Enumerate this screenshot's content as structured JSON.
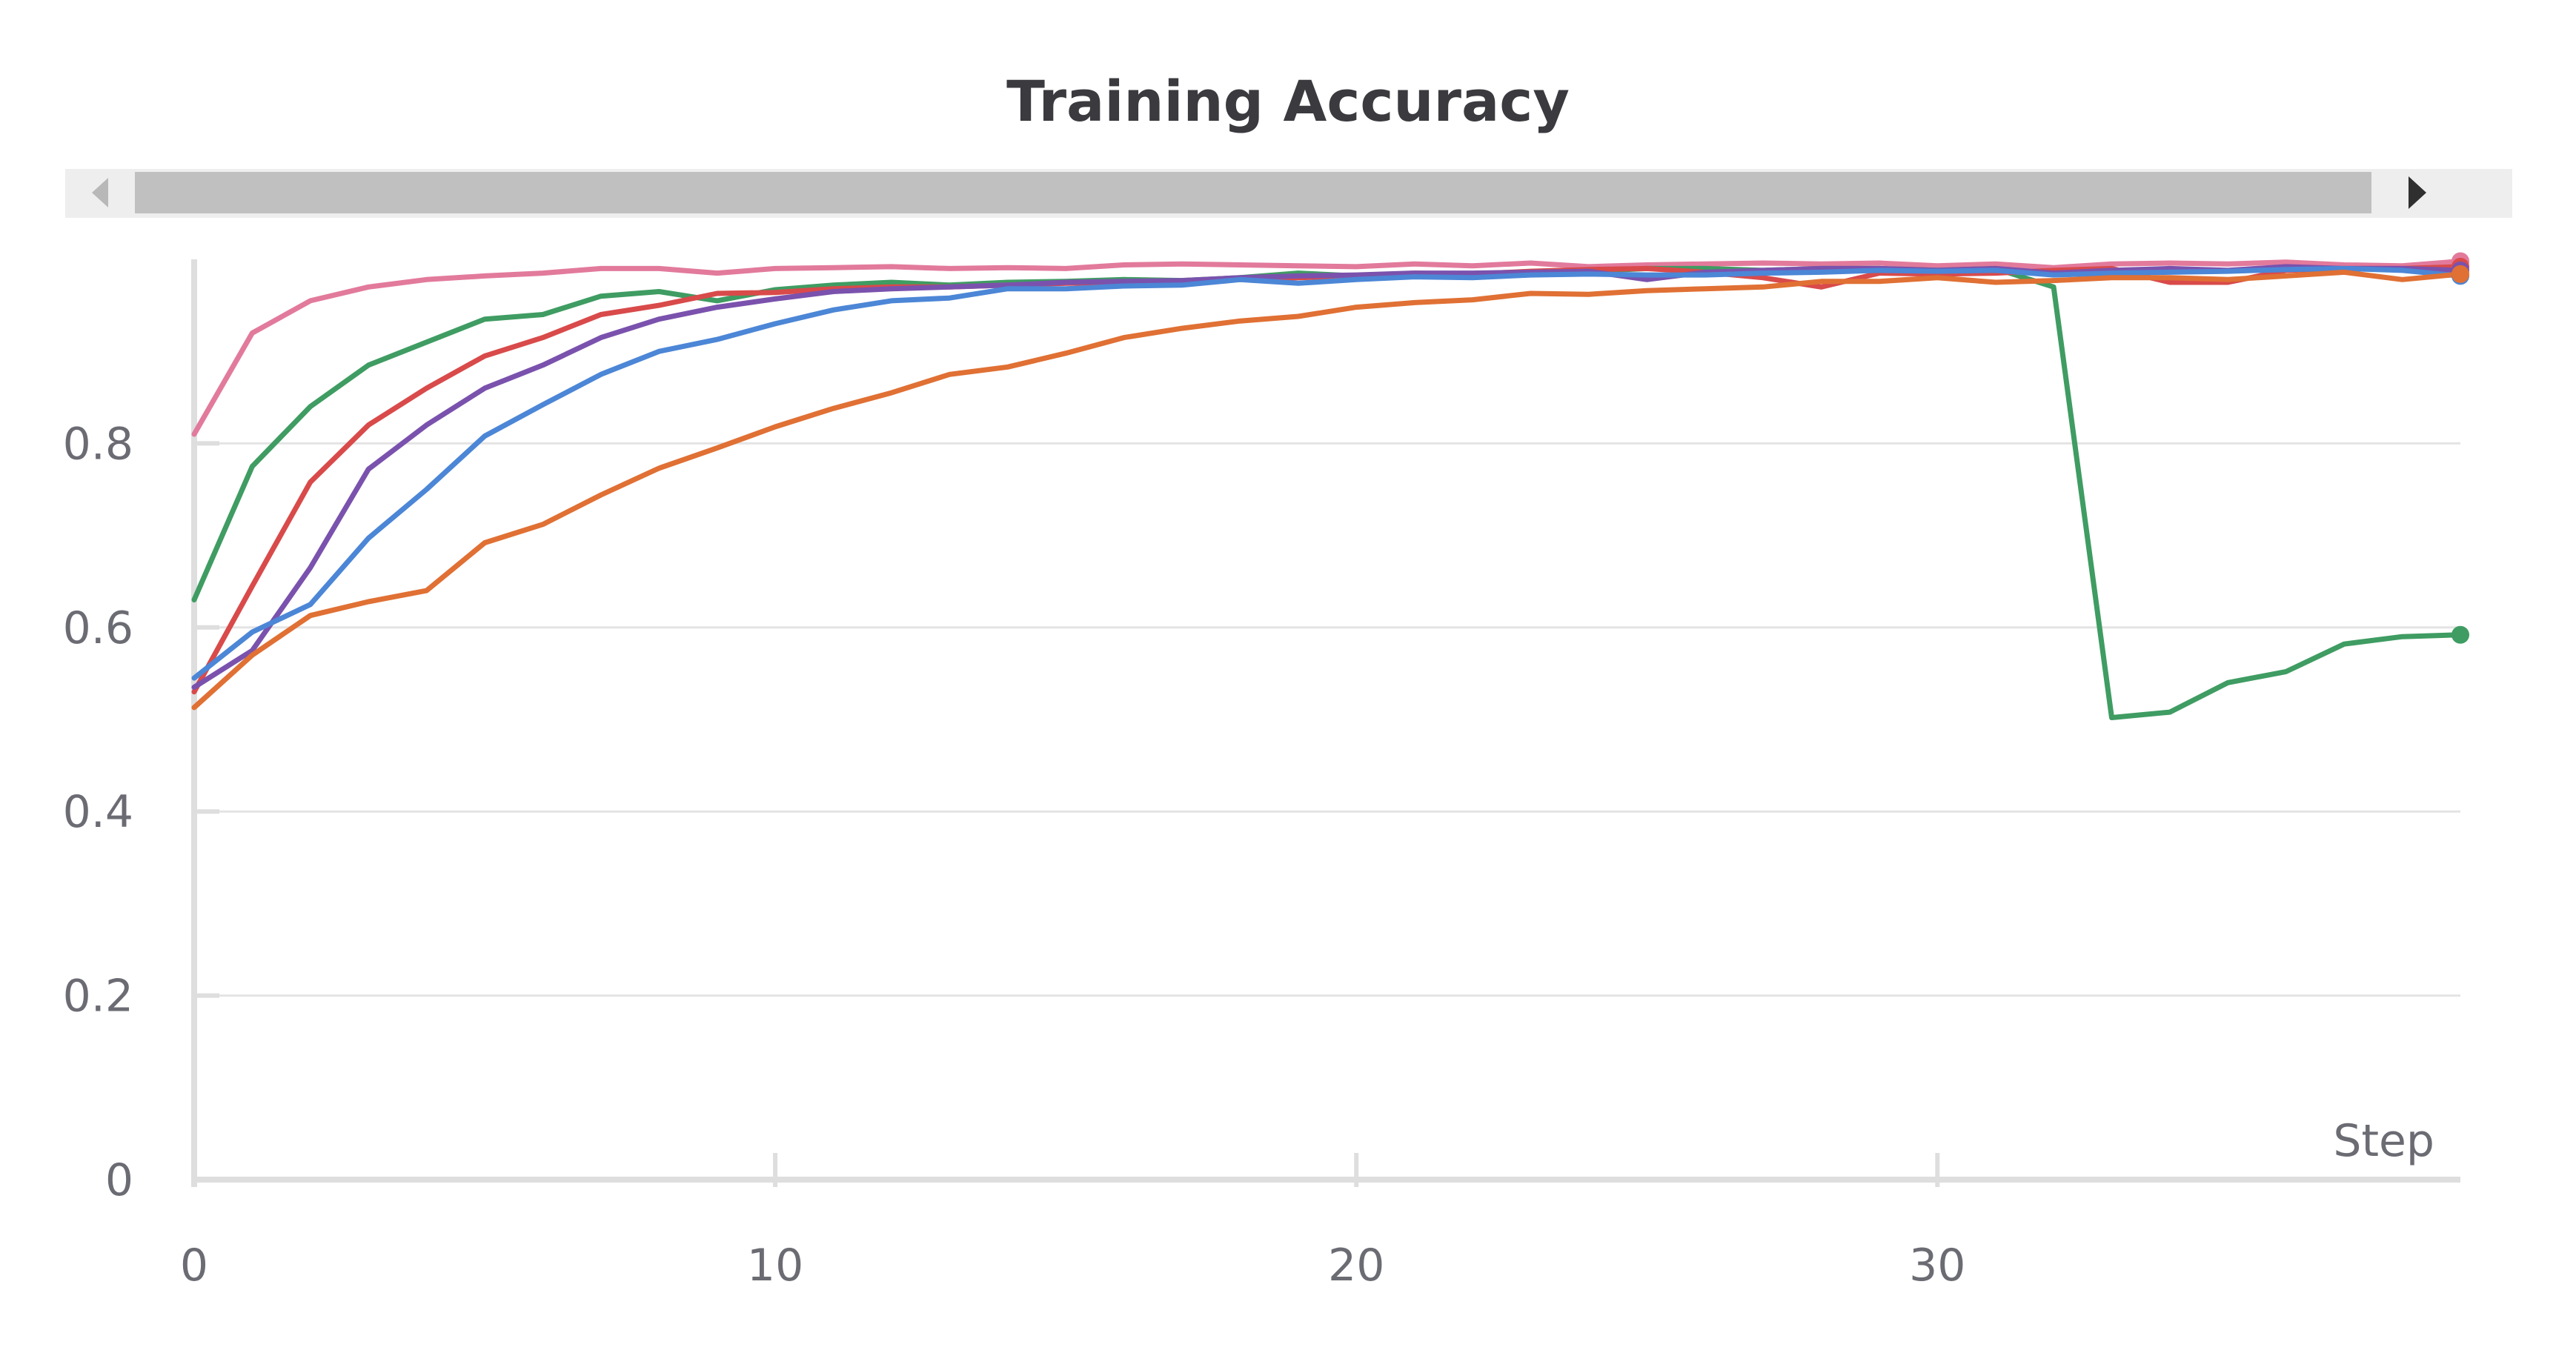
{
  "chart_data": {
    "type": "line",
    "title": "Training Accuracy",
    "xlabel": "Step",
    "ylabel": "",
    "xlim": [
      0,
      39
    ],
    "ylim": [
      0,
      1.0
    ],
    "x_ticks": [
      0,
      10,
      20,
      30
    ],
    "y_ticks": [
      0,
      0.2,
      0.4,
      0.6,
      0.8
    ],
    "x_tick_labels": [
      "0",
      "10",
      "20",
      "30"
    ],
    "y_tick_labels": [
      "0",
      "0.2",
      "0.4",
      "0.6",
      "0.8"
    ],
    "grid": true,
    "legend": "none",
    "range_slider": true,
    "series": [
      {
        "color": "#e27a9c",
        "x": [
          0,
          1,
          2,
          3,
          4,
          5,
          6,
          7,
          8,
          9,
          10,
          11,
          12,
          13,
          14,
          15,
          16,
          17,
          18,
          19,
          20,
          21,
          22,
          23,
          24,
          25,
          26,
          27,
          28,
          29,
          30,
          31,
          32,
          33,
          34,
          35,
          36,
          37,
          38,
          39
        ],
        "values": [
          0.81,
          0.92,
          0.955,
          0.97,
          0.978,
          0.982,
          0.985,
          0.99,
          0.99,
          0.985,
          0.99,
          0.991,
          0.992,
          0.99,
          0.991,
          0.99,
          0.994,
          0.995,
          0.994,
          0.993,
          0.992,
          0.995,
          0.993,
          0.996,
          0.992,
          0.994,
          0.995,
          0.996,
          0.995,
          0.996,
          0.993,
          0.995,
          0.991,
          0.995,
          0.996,
          0.995,
          0.997,
          0.994,
          0.993,
          0.998
        ]
      },
      {
        "color": "#3f9c62",
        "x": [
          0,
          1,
          2,
          3,
          4,
          5,
          6,
          7,
          8,
          9,
          10,
          11,
          12,
          13,
          14,
          15,
          16,
          17,
          18,
          19,
          20,
          21,
          22,
          23,
          24,
          25,
          26,
          27,
          28,
          29,
          30,
          31,
          32,
          33,
          34,
          35,
          36,
          37,
          38,
          39
        ],
        "values": [
          0.63,
          0.775,
          0.84,
          0.885,
          0.91,
          0.935,
          0.94,
          0.96,
          0.965,
          0.955,
          0.967,
          0.972,
          0.975,
          0.972,
          0.975,
          0.976,
          0.978,
          0.977,
          0.98,
          0.985,
          0.982,
          0.984,
          0.983,
          0.986,
          0.987,
          0.99,
          0.99,
          0.988,
          0.99,
          0.99,
          0.988,
          0.99,
          0.97,
          0.502,
          0.508,
          0.54,
          0.552,
          0.582,
          0.59,
          0.592
        ]
      },
      {
        "color": "#d94a4a",
        "x": [
          0,
          1,
          2,
          3,
          4,
          5,
          6,
          7,
          8,
          9,
          10,
          11,
          12,
          13,
          14,
          15,
          16,
          17,
          18,
          19,
          20,
          21,
          22,
          23,
          24,
          25,
          26,
          27,
          28,
          29,
          30,
          31,
          32,
          33,
          34,
          35,
          36,
          37,
          38,
          39
        ],
        "values": [
          0.53,
          0.645,
          0.758,
          0.82,
          0.86,
          0.895,
          0.915,
          0.94,
          0.95,
          0.963,
          0.964,
          0.968,
          0.97,
          0.97,
          0.972,
          0.974,
          0.975,
          0.976,
          0.978,
          0.98,
          0.982,
          0.985,
          0.984,
          0.987,
          0.989,
          0.99,
          0.986,
          0.98,
          0.97,
          0.985,
          0.984,
          0.985,
          0.988,
          0.99,
          0.975,
          0.975,
          0.988,
          0.99,
          0.99,
          0.992
        ]
      },
      {
        "color": "#7a52ad",
        "x": [
          0,
          1,
          2,
          3,
          4,
          5,
          6,
          7,
          8,
          9,
          10,
          11,
          12,
          13,
          14,
          15,
          16,
          17,
          18,
          19,
          20,
          21,
          22,
          23,
          24,
          25,
          26,
          27,
          28,
          29,
          30,
          31,
          32,
          33,
          34,
          35,
          36,
          37,
          38,
          39
        ],
        "values": [
          0.535,
          0.575,
          0.665,
          0.772,
          0.82,
          0.86,
          0.885,
          0.915,
          0.935,
          0.948,
          0.957,
          0.965,
          0.968,
          0.97,
          0.972,
          0.975,
          0.976,
          0.977,
          0.98,
          0.982,
          0.983,
          0.985,
          0.985,
          0.986,
          0.987,
          0.978,
          0.986,
          0.988,
          0.99,
          0.99,
          0.988,
          0.99,
          0.985,
          0.988,
          0.99,
          0.988,
          0.992,
          0.99,
          0.99,
          0.988
        ]
      },
      {
        "color": "#4c86d6",
        "x": [
          0,
          1,
          2,
          3,
          4,
          5,
          6,
          7,
          8,
          9,
          10,
          11,
          12,
          13,
          14,
          15,
          16,
          17,
          18,
          19,
          20,
          21,
          22,
          23,
          24,
          25,
          26,
          27,
          28,
          29,
          30,
          31,
          32,
          33,
          34,
          35,
          36,
          37,
          38,
          39
        ],
        "values": [
          0.545,
          0.595,
          0.625,
          0.697,
          0.75,
          0.808,
          0.842,
          0.875,
          0.9,
          0.913,
          0.93,
          0.945,
          0.955,
          0.958,
          0.968,
          0.968,
          0.971,
          0.972,
          0.978,
          0.974,
          0.978,
          0.981,
          0.98,
          0.983,
          0.984,
          0.983,
          0.983,
          0.985,
          0.986,
          0.988,
          0.987,
          0.988,
          0.983,
          0.985,
          0.986,
          0.987,
          0.989,
          0.99,
          0.988,
          0.982
        ]
      },
      {
        "color": "#e07034",
        "x": [
          0,
          1,
          2,
          3,
          4,
          5,
          6,
          7,
          8,
          9,
          10,
          11,
          12,
          13,
          14,
          15,
          16,
          17,
          18,
          19,
          20,
          21,
          22,
          23,
          24,
          25,
          26,
          27,
          28,
          29,
          30,
          31,
          32,
          33,
          34,
          35,
          36,
          37,
          38,
          39
        ],
        "values": [
          0.513,
          0.57,
          0.613,
          0.628,
          0.64,
          0.692,
          0.712,
          0.744,
          0.773,
          0.795,
          0.818,
          0.838,
          0.855,
          0.875,
          0.883,
          0.898,
          0.915,
          0.925,
          0.933,
          0.938,
          0.948,
          0.953,
          0.956,
          0.963,
          0.962,
          0.966,
          0.968,
          0.97,
          0.976,
          0.976,
          0.98,
          0.975,
          0.977,
          0.98,
          0.98,
          0.978,
          0.982,
          0.986,
          0.978,
          0.984
        ]
      }
    ]
  }
}
